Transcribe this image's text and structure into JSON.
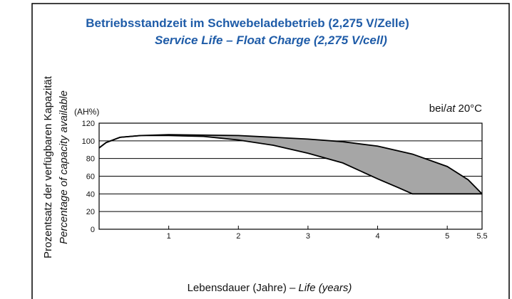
{
  "chart_data": {
    "type": "area",
    "title": "Betriebsstandzeit im Schwebeladebetrieb (2,275 V/Zelle)",
    "subtitle": "Service Life – Float Charge (2,275 V/cell)",
    "ylabel": [
      "Prozentsatz der verfügbaren Kapazität",
      "Percentage of capacity available"
    ],
    "xlabel": [
      "Lebensdauer (Jahre) –",
      "Life (years)"
    ],
    "unit": "(AH%)",
    "annotation": [
      "bei/",
      "at",
      "20°C"
    ],
    "series": [
      {
        "x": [
          0,
          0.1,
          0.3,
          0.6,
          1,
          2,
          2.5,
          3,
          3.5,
          4,
          4.5,
          5,
          5.3,
          5.5
        ],
        "values": [
          92,
          98,
          104,
          106,
          107,
          106,
          104,
          102,
          99,
          94,
          85,
          71,
          56,
          40
        ]
      },
      {
        "x": [
          0,
          0.1,
          0.3,
          0.6,
          1,
          1.5,
          2,
          2.5,
          3,
          3.5,
          4,
          4.3,
          4.5,
          5.5
        ],
        "values": [
          92,
          98,
          104,
          106,
          106,
          105,
          101,
          95,
          86,
          75,
          57,
          47,
          40,
          40
        ]
      }
    ],
    "color": "#a6a6a6",
    "xlim": [
      0,
      5.5
    ],
    "xticks": [
      1,
      2,
      3,
      4,
      5,
      5.5
    ],
    "ylim": [
      0,
      120
    ],
    "yticks": [
      0,
      20,
      40,
      60,
      80,
      100,
      120
    ],
    "grid": true
  }
}
